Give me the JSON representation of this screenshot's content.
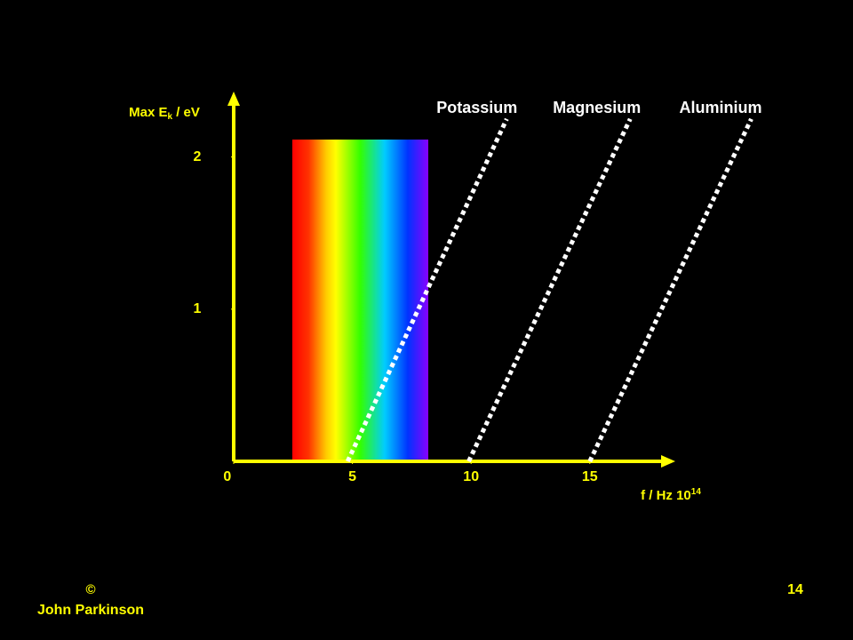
{
  "chart_data": {
    "type": "line",
    "ylabel": [
      "Max E",
      "k",
      " / eV"
    ],
    "xlabel": [
      "f / Hz 10",
      "14"
    ],
    "xlim": [
      0,
      18.6
    ],
    "ylim": [
      0,
      2.43
    ],
    "xticks": [
      0,
      5,
      10,
      15
    ],
    "yticks": [
      1,
      2
    ],
    "axis_color": "#ffff00",
    "series": [
      {
        "name": "Potassium",
        "color": "#ffffff",
        "x": [
          4.8,
          11.5
        ],
        "values": [
          0,
          2.25
        ]
      },
      {
        "name": "Magnesium",
        "color": "#ffffff",
        "x": [
          9.9,
          16.7
        ],
        "values": [
          0,
          2.25
        ]
      },
      {
        "name": "Aluminium",
        "color": "#ffffff",
        "x": [
          15,
          21.8
        ],
        "values": [
          0,
          2.25
        ]
      }
    ]
  },
  "footer": {
    "copyright": "©",
    "author": "John Parkinson",
    "page": "14"
  }
}
